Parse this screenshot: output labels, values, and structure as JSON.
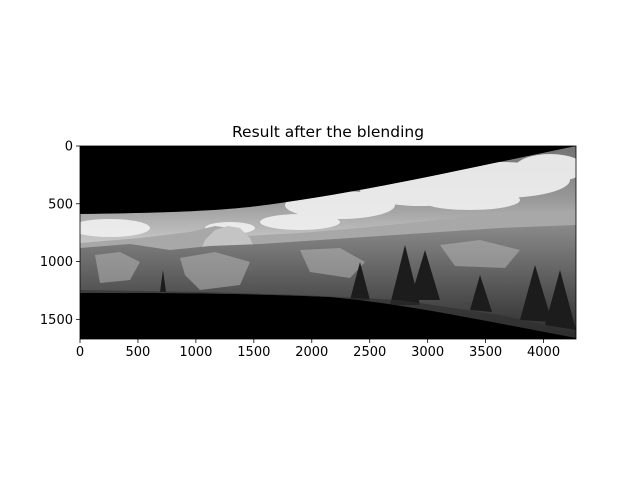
{
  "figure": {
    "title": "Result after the blending",
    "image_description_colormap": "grayscale",
    "background": "#ffffff",
    "image_extent": {
      "x": [
        0,
        4280
      ],
      "y": [
        1670,
        0
      ]
    },
    "x_ticks": [
      "0",
      "500",
      "1000",
      "1500",
      "2000",
      "2500",
      "3000",
      "3500",
      "4000"
    ],
    "y_ticks": [
      "0",
      "500",
      "1000",
      "1500"
    ],
    "x_tick_values": [
      0,
      500,
      1000,
      1500,
      2000,
      2500,
      3000,
      3500,
      4000
    ],
    "y_tick_values": [
      0,
      500,
      1000,
      1500
    ]
  }
}
